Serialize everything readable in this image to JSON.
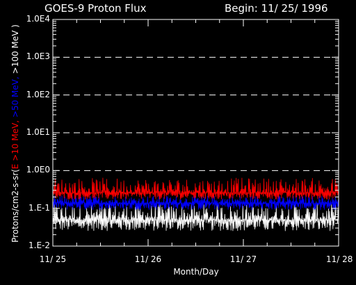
{
  "chart_data": {
    "type": "line",
    "title": "GOES-9 Proton Flux",
    "subtitle": "Begin: 11/ 25/ 1996",
    "xlabel": "Month/Day",
    "ylabel_parts": {
      "prefix": "Protons/cm2-s-sr(",
      "e10": "E >10 MeV,",
      "e50": " >50 MeV,",
      "e100": " >100 MeV )"
    },
    "x_ticks": [
      {
        "value": 0,
        "label": "11/ 25"
      },
      {
        "value": 1,
        "label": "11/ 26"
      },
      {
        "value": 2,
        "label": "11/ 27"
      },
      {
        "value": 3,
        "label": "11/ 28"
      }
    ],
    "xlim": [
      0,
      3
    ],
    "y_scale": "log",
    "ylim": [
      0.01,
      10000
    ],
    "y_ticks": [
      {
        "value": 10000,
        "label": "1.0E4"
      },
      {
        "value": 1000,
        "label": "1.0E3"
      },
      {
        "value": 100,
        "label": "1.0E2"
      },
      {
        "value": 10,
        "label": "1.0E1"
      },
      {
        "value": 1,
        "label": "1.0E0"
      },
      {
        "value": 0.1,
        "label": "1.E-1"
      },
      {
        "value": 0.01,
        "label": "1.E-2"
      }
    ],
    "grid": "dashed horizontal at 1.0E0 through 1.0E3",
    "series": [
      {
        "key": "e100",
        "color": "#ffffff",
        "x": [
          0,
          0.5,
          1,
          1.5,
          2,
          2.5,
          3
        ],
        "y": [
          0.05,
          0.05,
          0.05,
          0.05,
          0.05,
          0.05,
          0.05
        ],
        "noise": [
          0.025,
          0.13
        ]
      },
      {
        "key": "e50",
        "color": "#0000ff",
        "x": [
          0,
          0.5,
          1,
          1.5,
          2,
          2.5,
          3
        ],
        "y": [
          0.14,
          0.14,
          0.14,
          0.14,
          0.14,
          0.14,
          0.14
        ],
        "noise": [
          0.09,
          0.22
        ]
      },
      {
        "key": "e10",
        "color": "#ff0000",
        "x": [
          0,
          0.5,
          1,
          1.5,
          2,
          2.5,
          3
        ],
        "y": [
          0.26,
          0.26,
          0.26,
          0.26,
          0.26,
          0.26,
          0.26
        ],
        "noise": [
          0.17,
          0.65
        ]
      }
    ]
  }
}
